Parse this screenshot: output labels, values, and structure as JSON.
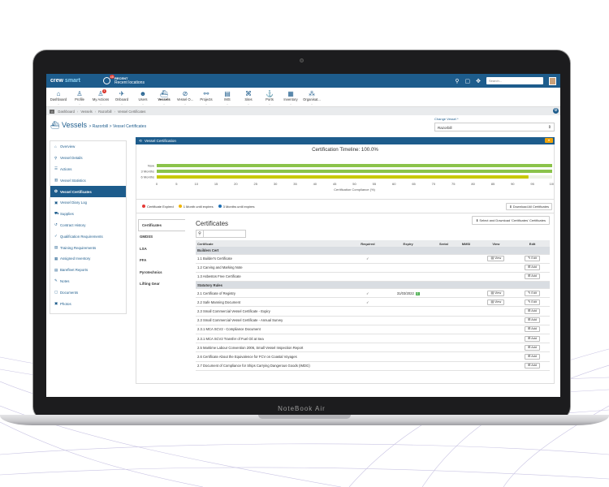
{
  "laptop": {
    "brand": "NoteBook Air"
  },
  "topbar": {
    "logo_a": "crew",
    "logo_b": "smart",
    "notif_count": "45",
    "recent_label": "RECENT",
    "recent_value": "Recent locations",
    "search_placeholder": "Search..."
  },
  "nav": [
    {
      "label": "Dashboard",
      "icon": "home-icon",
      "glyph": "⌂"
    },
    {
      "label": "Profile",
      "icon": "user-icon",
      "glyph": "♙"
    },
    {
      "label": "My Actions",
      "icon": "actions-icon",
      "glyph": "♙",
      "badge": "1"
    },
    {
      "label": "Onboard",
      "icon": "onboard-icon",
      "glyph": "✈"
    },
    {
      "label": "Users",
      "icon": "users-icon",
      "glyph": "☻"
    },
    {
      "label": "Vessels",
      "icon": "vessel-icon",
      "glyph": "⛴",
      "active": true
    },
    {
      "label": "Vessel O...",
      "icon": "compass-icon",
      "glyph": "⊘"
    },
    {
      "label": "Projects",
      "icon": "projects-icon",
      "glyph": "⚯"
    },
    {
      "label": "IMS",
      "icon": "ims-icon",
      "glyph": "▤"
    },
    {
      "label": "Sites",
      "icon": "sites-icon",
      "glyph": "⌘"
    },
    {
      "label": "Ports",
      "icon": "anchor-icon",
      "glyph": "⚓"
    },
    {
      "label": "Inventory",
      "icon": "inventory-icon",
      "glyph": "▦"
    },
    {
      "label": "Organisat...",
      "icon": "org-icon",
      "glyph": "⁂"
    }
  ],
  "breadcrumb": [
    "Dashboard",
    "Vessels",
    "Razorbill",
    "Vessel Certificates"
  ],
  "page": {
    "title": "Vessels",
    "subtitle": "> Razorbill > Vessel Certificates",
    "change_vessel_label": "Change Vessel *",
    "change_vessel_value": "Razorbill"
  },
  "sidebar": [
    {
      "label": "Overview",
      "glyph": "⌂"
    },
    {
      "label": "Vessel Details",
      "glyph": "⚲"
    },
    {
      "label": "Actions",
      "glyph": "☰"
    },
    {
      "label": "Vessel Statistics",
      "glyph": "▥"
    },
    {
      "label": "Vessel Certificates",
      "glyph": "✪",
      "active": true
    },
    {
      "label": "Vessel Diary Log",
      "glyph": "▣"
    },
    {
      "label": "Supplies",
      "glyph": "⛟"
    },
    {
      "label": "Contract History",
      "glyph": "↺"
    },
    {
      "label": "Qualification Requirements",
      "glyph": "✓"
    },
    {
      "label": "Training Requirements",
      "glyph": "▤"
    },
    {
      "label": "Assigned Inventory",
      "glyph": "▦"
    },
    {
      "label": "Barefleet Reports",
      "glyph": "▤"
    },
    {
      "label": "Notes",
      "glyph": "✎"
    },
    {
      "label": "Documents",
      "glyph": "▢"
    },
    {
      "label": "Photos",
      "glyph": "▣"
    }
  ],
  "cert_section": {
    "title": "Vessel Certification",
    "download_all": "Download All Certificates"
  },
  "chart_data": {
    "type": "bar",
    "title": "Certification Timeline: 100.0%",
    "xlabel": "Certification Compliance (%)",
    "categories": [
      "Now",
      "3 Months",
      "6 Months"
    ],
    "values": [
      100,
      100,
      94
    ],
    "xlim": [
      0,
      100
    ],
    "ticks": [
      0,
      5,
      10,
      15,
      20,
      25,
      30,
      35,
      40,
      45,
      50,
      55,
      60,
      65,
      70,
      75,
      80,
      85,
      90,
      95,
      100
    ],
    "colors": [
      "#8bc34a",
      "#8bc34a",
      "#c8c800"
    ]
  },
  "legend": [
    {
      "label": "Certificate Expired",
      "color": "#e53935"
    },
    {
      "label": "1 Month until expires",
      "color": "#f0b400"
    },
    {
      "label": "3 Months until expires",
      "color": "#1e6fb5"
    }
  ],
  "categories": [
    "Certificates",
    "GMDSS",
    "LSA",
    "FFA",
    "Pyrotechnics",
    "Lifting Gear"
  ],
  "certificates": {
    "title": "Certificates",
    "select_download": "Select and Download 'Certificates' Certificates",
    "columns": [
      "Certificate",
      "Required",
      "Expiry",
      "Serial",
      "MMSI",
      "View",
      "Edit"
    ],
    "rows": [
      {
        "group": "Builders Cert"
      },
      {
        "name": "1.1 Builder's Certificate",
        "required": "✓",
        "view": "View",
        "edit": "Edit"
      },
      {
        "name": "1.2 Carving and Marking Note",
        "edit": "Add"
      },
      {
        "name": "1.3 Asbestos Free Certificate",
        "edit": "Add"
      },
      {
        "group": "Statutory Rules"
      },
      {
        "name": "2.1 Certificate of Registry",
        "required": "✓",
        "expiry": "31/03/2022",
        "expiry_badge": "G",
        "view": "View",
        "edit": "Edit"
      },
      {
        "name": "2.2 Safe Manning Document",
        "required": "✓",
        "view": "View",
        "edit": "Edit"
      },
      {
        "name": "2.3 Small Commercial Vessel Certificate - Expiry",
        "edit": "Add"
      },
      {
        "name": "2.3 Small Commercial Vessel Certificate - Annual Survey",
        "edit": "Add"
      },
      {
        "name": "2.3.1 MCA SCV2 - Compliance Document",
        "edit": "Add"
      },
      {
        "name": "2.3.1 MCA SCV2 Transfer of Fuel Oil at Sea",
        "edit": "Add"
      },
      {
        "name": "2.5 Maritime Labour Convention 2006, Small Vessel Inspection Report",
        "edit": "Add"
      },
      {
        "name": "2.6 Certificate About the Equivalence for FCV on Coastal Voyages",
        "edit": "Add"
      },
      {
        "name": "2.7 Document of Compliance for Ships Carrying Dangerous Goods (IMDG)",
        "edit": "Add"
      }
    ]
  }
}
